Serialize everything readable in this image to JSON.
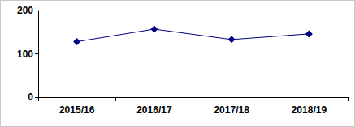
{
  "chart_data": {
    "type": "line",
    "categories": [
      "2015/16",
      "2016/17",
      "2017/18",
      "2018/19"
    ],
    "values": [
      128,
      157,
      133,
      146
    ],
    "color": "#000080",
    "marker": "diamond",
    "line_style": "solid",
    "ylim": [
      0,
      200
    ],
    "yticks": [
      0,
      100,
      200
    ],
    "grid": false
  }
}
